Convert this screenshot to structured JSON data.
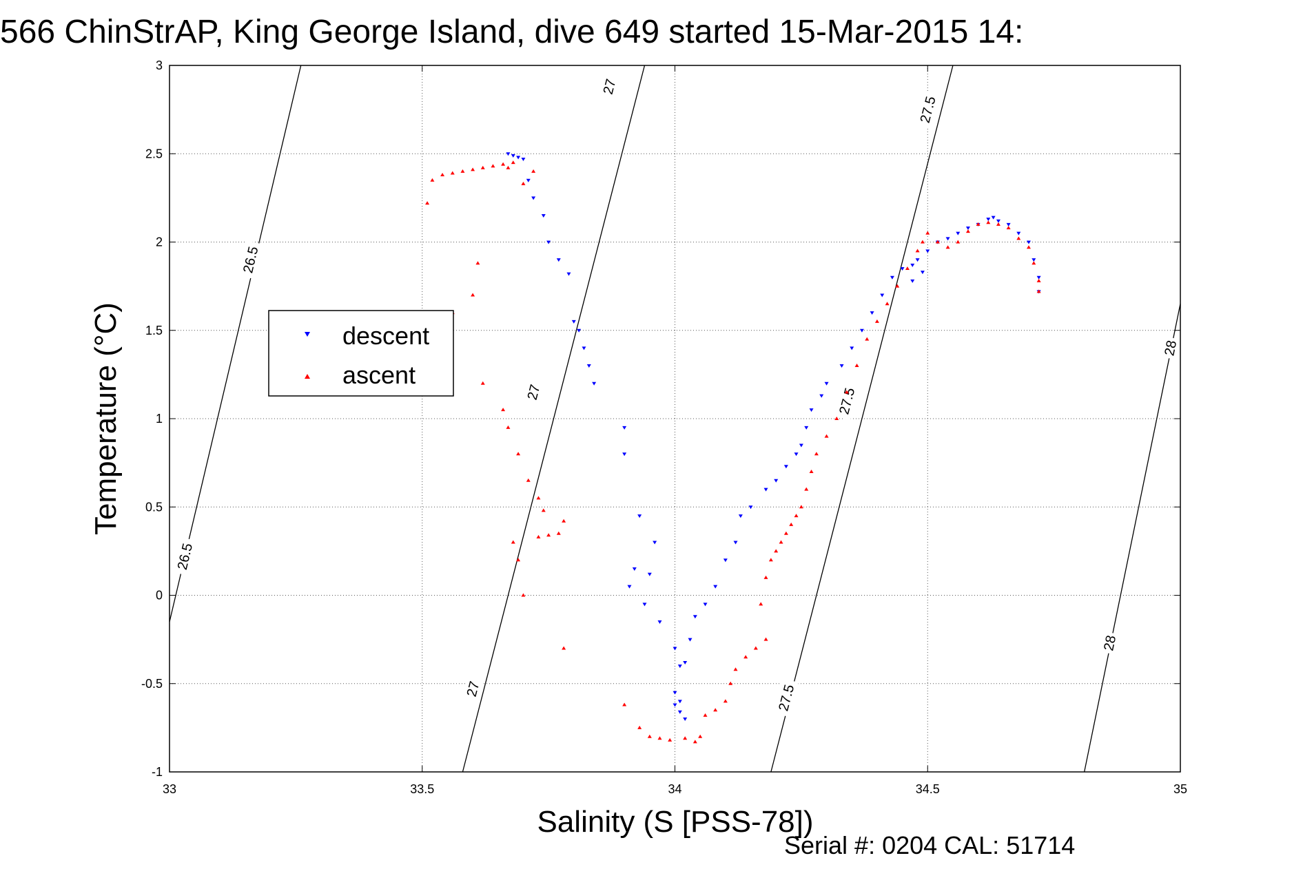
{
  "chart_data": {
    "type": "scatter",
    "title": "566 ChinStrAP, King George Island, dive 649 started 15-Mar-2015 14:",
    "xlabel": "Salinity (S [PSS-78])",
    "ylabel": "Temperature (°C)",
    "xlim": [
      33,
      35
    ],
    "ylim": [
      -1,
      3
    ],
    "xticks": [
      "33",
      "33.5",
      "34",
      "34.5",
      "35"
    ],
    "yticks": [
      "-1",
      "-0.5",
      "0",
      "0.5",
      "1",
      "1.5",
      "2",
      "2.5",
      "3"
    ],
    "grid": true,
    "legend_position": "upper-left",
    "footer": "Serial #: 0204  CAL: 51714",
    "contours": [
      {
        "label": "26.5",
        "points": [
          [
            33.0,
            -0.15
          ],
          [
            33.26,
            3.0
          ]
        ]
      },
      {
        "label": "27",
        "points": [
          [
            33.58,
            -1.0
          ],
          [
            33.94,
            3.0
          ]
        ]
      },
      {
        "label": "27.5",
        "points": [
          [
            34.19,
            -1.0
          ],
          [
            34.55,
            3.0
          ]
        ]
      },
      {
        "label": "28",
        "points": [
          [
            34.81,
            -1.0
          ],
          [
            35.0,
            1.65
          ]
        ]
      }
    ],
    "contour_labels": [
      {
        "text": "26.5",
        "x": 33.16,
        "y": 1.9
      },
      {
        "text": "26.5",
        "x": 33.03,
        "y": 0.22
      },
      {
        "text": "27",
        "x": 33.87,
        "y": 2.88
      },
      {
        "text": "27",
        "x": 33.72,
        "y": 1.15
      },
      {
        "text": "27",
        "x": 33.6,
        "y": -0.53
      },
      {
        "text": "27.5",
        "x": 34.5,
        "y": 2.75
      },
      {
        "text": "27.5",
        "x": 34.34,
        "y": 1.1
      },
      {
        "text": "27.5",
        "x": 34.22,
        "y": -0.58
      },
      {
        "text": "28",
        "x": 34.98,
        "y": 1.4
      },
      {
        "text": "28",
        "x": 34.86,
        "y": -0.27
      }
    ],
    "series": [
      {
        "name": "descent",
        "color": "#0000ff",
        "marker": "triangle-down",
        "points": [
          [
            33.67,
            2.5
          ],
          [
            33.68,
            2.49
          ],
          [
            33.69,
            2.48
          ],
          [
            33.7,
            2.47
          ],
          [
            33.71,
            2.35
          ],
          [
            33.72,
            2.25
          ],
          [
            33.74,
            2.15
          ],
          [
            33.75,
            2.0
          ],
          [
            33.77,
            1.9
          ],
          [
            33.79,
            1.82
          ],
          [
            33.8,
            1.55
          ],
          [
            33.81,
            1.5
          ],
          [
            33.82,
            1.4
          ],
          [
            33.83,
            1.3
          ],
          [
            33.84,
            1.2
          ],
          [
            33.9,
            0.95
          ],
          [
            33.9,
            0.8
          ],
          [
            33.93,
            0.45
          ],
          [
            33.96,
            0.3
          ],
          [
            33.92,
            0.15
          ],
          [
            33.95,
            0.12
          ],
          [
            33.91,
            0.05
          ],
          [
            33.94,
            -0.05
          ],
          [
            33.97,
            -0.15
          ],
          [
            34.0,
            -0.3
          ],
          [
            34.01,
            -0.4
          ],
          [
            34.0,
            -0.55
          ],
          [
            34.0,
            -0.62
          ],
          [
            34.01,
            -0.66
          ],
          [
            34.02,
            -0.7
          ],
          [
            34.01,
            -0.6
          ],
          [
            34.02,
            -0.38
          ],
          [
            34.03,
            -0.25
          ],
          [
            34.04,
            -0.12
          ],
          [
            34.06,
            -0.05
          ],
          [
            34.08,
            0.05
          ],
          [
            34.1,
            0.2
          ],
          [
            34.12,
            0.3
          ],
          [
            34.13,
            0.45
          ],
          [
            34.15,
            0.5
          ],
          [
            34.18,
            0.6
          ],
          [
            34.2,
            0.65
          ],
          [
            34.22,
            0.73
          ],
          [
            34.24,
            0.8
          ],
          [
            34.25,
            0.85
          ],
          [
            34.26,
            0.95
          ],
          [
            34.27,
            1.05
          ],
          [
            34.29,
            1.13
          ],
          [
            34.3,
            1.2
          ],
          [
            34.33,
            1.3
          ],
          [
            34.35,
            1.4
          ],
          [
            34.37,
            1.5
          ],
          [
            34.39,
            1.6
          ],
          [
            34.41,
            1.7
          ],
          [
            34.43,
            1.8
          ],
          [
            34.45,
            1.85
          ],
          [
            34.47,
            1.87
          ],
          [
            34.48,
            1.9
          ],
          [
            34.49,
            1.83
          ],
          [
            34.47,
            1.78
          ],
          [
            34.5,
            1.95
          ],
          [
            34.52,
            2.0
          ],
          [
            34.54,
            2.02
          ],
          [
            34.56,
            2.05
          ],
          [
            34.58,
            2.08
          ],
          [
            34.6,
            2.1
          ],
          [
            34.62,
            2.13
          ],
          [
            34.63,
            2.14
          ],
          [
            34.64,
            2.12
          ],
          [
            34.66,
            2.1
          ],
          [
            34.68,
            2.05
          ],
          [
            34.7,
            2.0
          ],
          [
            34.71,
            1.9
          ],
          [
            34.72,
            1.8
          ],
          [
            34.72,
            1.72
          ]
        ]
      },
      {
        "name": "ascent",
        "color": "#ff0000",
        "marker": "triangle-up",
        "points": [
          [
            33.51,
            2.22
          ],
          [
            33.52,
            2.35
          ],
          [
            33.54,
            2.38
          ],
          [
            33.56,
            2.39
          ],
          [
            33.58,
            2.4
          ],
          [
            33.6,
            2.41
          ],
          [
            33.62,
            2.42
          ],
          [
            33.64,
            2.43
          ],
          [
            33.66,
            2.44
          ],
          [
            33.68,
            2.45
          ],
          [
            33.67,
            2.42
          ],
          [
            33.72,
            2.4
          ],
          [
            33.7,
            2.33
          ],
          [
            33.61,
            1.88
          ],
          [
            33.6,
            1.7
          ],
          [
            33.56,
            1.6
          ],
          [
            33.62,
            1.2
          ],
          [
            33.66,
            1.05
          ],
          [
            33.67,
            0.95
          ],
          [
            33.69,
            0.8
          ],
          [
            33.71,
            0.65
          ],
          [
            33.73,
            0.55
          ],
          [
            33.74,
            0.48
          ],
          [
            33.78,
            0.42
          ],
          [
            33.77,
            0.35
          ],
          [
            33.75,
            0.34
          ],
          [
            33.73,
            0.33
          ],
          [
            33.68,
            0.3
          ],
          [
            33.69,
            0.2
          ],
          [
            33.7,
            0.0
          ],
          [
            33.78,
            -0.3
          ],
          [
            33.9,
            -0.62
          ],
          [
            33.93,
            -0.75
          ],
          [
            33.95,
            -0.8
          ],
          [
            33.97,
            -0.81
          ],
          [
            33.99,
            -0.82
          ],
          [
            34.02,
            -0.81
          ],
          [
            34.04,
            -0.83
          ],
          [
            34.05,
            -0.8
          ],
          [
            34.06,
            -0.68
          ],
          [
            34.08,
            -0.65
          ],
          [
            34.1,
            -0.6
          ],
          [
            34.11,
            -0.5
          ],
          [
            34.12,
            -0.42
          ],
          [
            34.14,
            -0.35
          ],
          [
            34.16,
            -0.3
          ],
          [
            34.18,
            -0.25
          ],
          [
            34.17,
            -0.05
          ],
          [
            34.18,
            0.1
          ],
          [
            34.19,
            0.2
          ],
          [
            34.2,
            0.25
          ],
          [
            34.21,
            0.3
          ],
          [
            34.22,
            0.35
          ],
          [
            34.23,
            0.4
          ],
          [
            34.24,
            0.45
          ],
          [
            34.25,
            0.5
          ],
          [
            34.26,
            0.6
          ],
          [
            34.27,
            0.7
          ],
          [
            34.28,
            0.8
          ],
          [
            34.3,
            0.9
          ],
          [
            34.32,
            1.0
          ],
          [
            34.34,
            1.15
          ],
          [
            34.36,
            1.3
          ],
          [
            34.38,
            1.45
          ],
          [
            34.4,
            1.55
          ],
          [
            34.42,
            1.65
          ],
          [
            34.44,
            1.75
          ],
          [
            34.46,
            1.85
          ],
          [
            34.48,
            1.95
          ],
          [
            34.49,
            2.0
          ],
          [
            34.5,
            2.05
          ],
          [
            34.52,
            2.0
          ],
          [
            34.54,
            1.97
          ],
          [
            34.56,
            2.0
          ],
          [
            34.58,
            2.06
          ],
          [
            34.6,
            2.1
          ],
          [
            34.62,
            2.11
          ],
          [
            34.64,
            2.1
          ],
          [
            34.66,
            2.08
          ],
          [
            34.68,
            2.02
          ],
          [
            34.7,
            1.97
          ],
          [
            34.71,
            1.88
          ],
          [
            34.72,
            1.78
          ],
          [
            34.72,
            1.72
          ]
        ]
      }
    ]
  }
}
